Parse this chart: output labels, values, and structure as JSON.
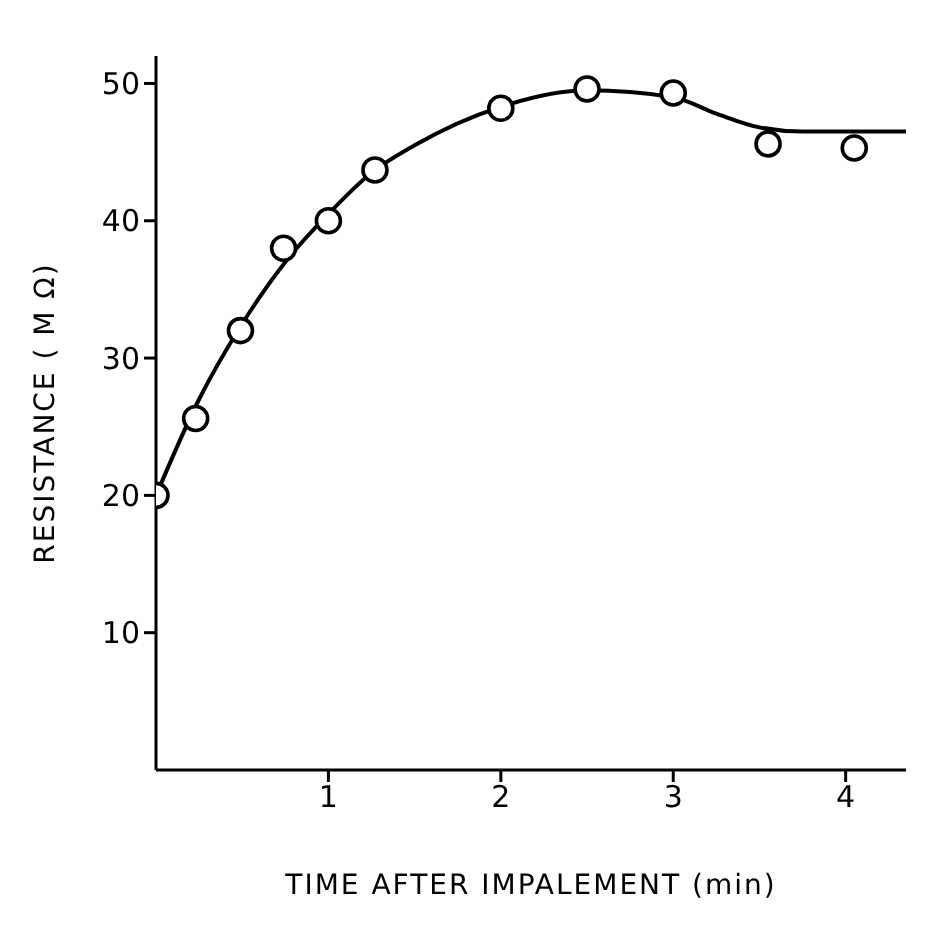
{
  "chart_data": {
    "type": "scatter",
    "xlabel": "TIME AFTER IMPALEMENT (min)",
    "ylabel": "RESISTANCE  ( M Ω)",
    "xlim": [
      0,
      4.35
    ],
    "ylim": [
      0,
      52
    ],
    "xticks": [
      1,
      2,
      3,
      4
    ],
    "yticks": [
      10,
      20,
      30,
      40,
      50
    ],
    "grid": false,
    "legend": false,
    "series": [
      {
        "marker": "circle",
        "color": "#000000",
        "x": [
          0,
          0.23,
          0.49,
          0.74,
          1,
          1.27,
          2,
          2.5,
          3,
          3.55,
          4.05
        ],
        "values": [
          20,
          25.6,
          32,
          38,
          40,
          43.7,
          48.2,
          49.6,
          49.3,
          45.6,
          45.3
        ]
      },
      {
        "type": "line",
        "marker": "none",
        "color": "#000000",
        "x": [
          0,
          0.25,
          0.5,
          0.75,
          1,
          1.25,
          1.5,
          2,
          2.5,
          3,
          3.25,
          3.5,
          3.75,
          4,
          4.35
        ],
        "values": [
          20,
          27,
          32.5,
          37,
          40.5,
          43.5,
          45.5,
          48.3,
          49.5,
          49,
          47.8,
          46.8,
          46.5,
          46.5,
          46.5
        ]
      }
    ]
  }
}
